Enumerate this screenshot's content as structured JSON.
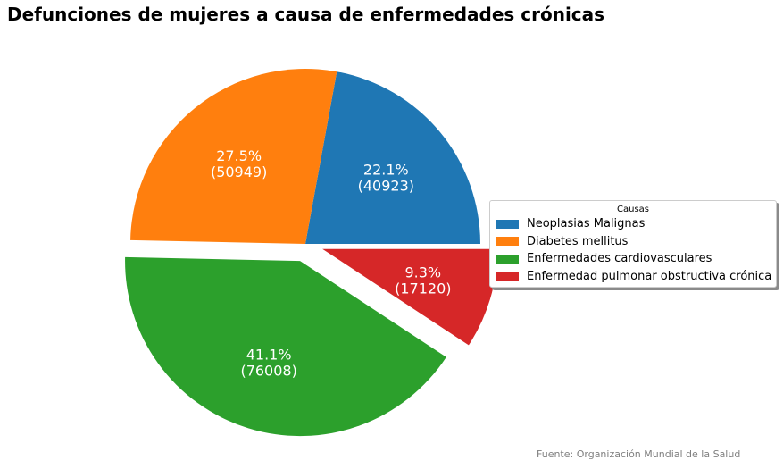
{
  "chart_data": {
    "type": "pie",
    "title": "Defunciones de mujeres a causa de enfermedades crónicas",
    "legend_title": "Causas",
    "legend_position": "right",
    "source": "Fuente: Organización Mundial de la Salud",
    "categories": [
      "Neoplasias Malignas",
      "Diabetes mellitus",
      "Enfermedades cardiovasculares",
      "Enfermedad pulmonar obstructiva crónica"
    ],
    "values": [
      40923,
      50949,
      76008,
      17120
    ],
    "percent_labels": [
      "22.1%",
      "27.5%",
      "41.1%",
      "9.3%"
    ],
    "value_labels": [
      "(40923)",
      "(50949)",
      "(76008)",
      "(17120)"
    ],
    "colors": [
      "#1f77b4",
      "#ff7f0e",
      "#2ca02c",
      "#d62728"
    ],
    "exploded": [
      false,
      false,
      true,
      true
    ],
    "start_angle_deg": 0,
    "direction": "counterclockwise"
  }
}
